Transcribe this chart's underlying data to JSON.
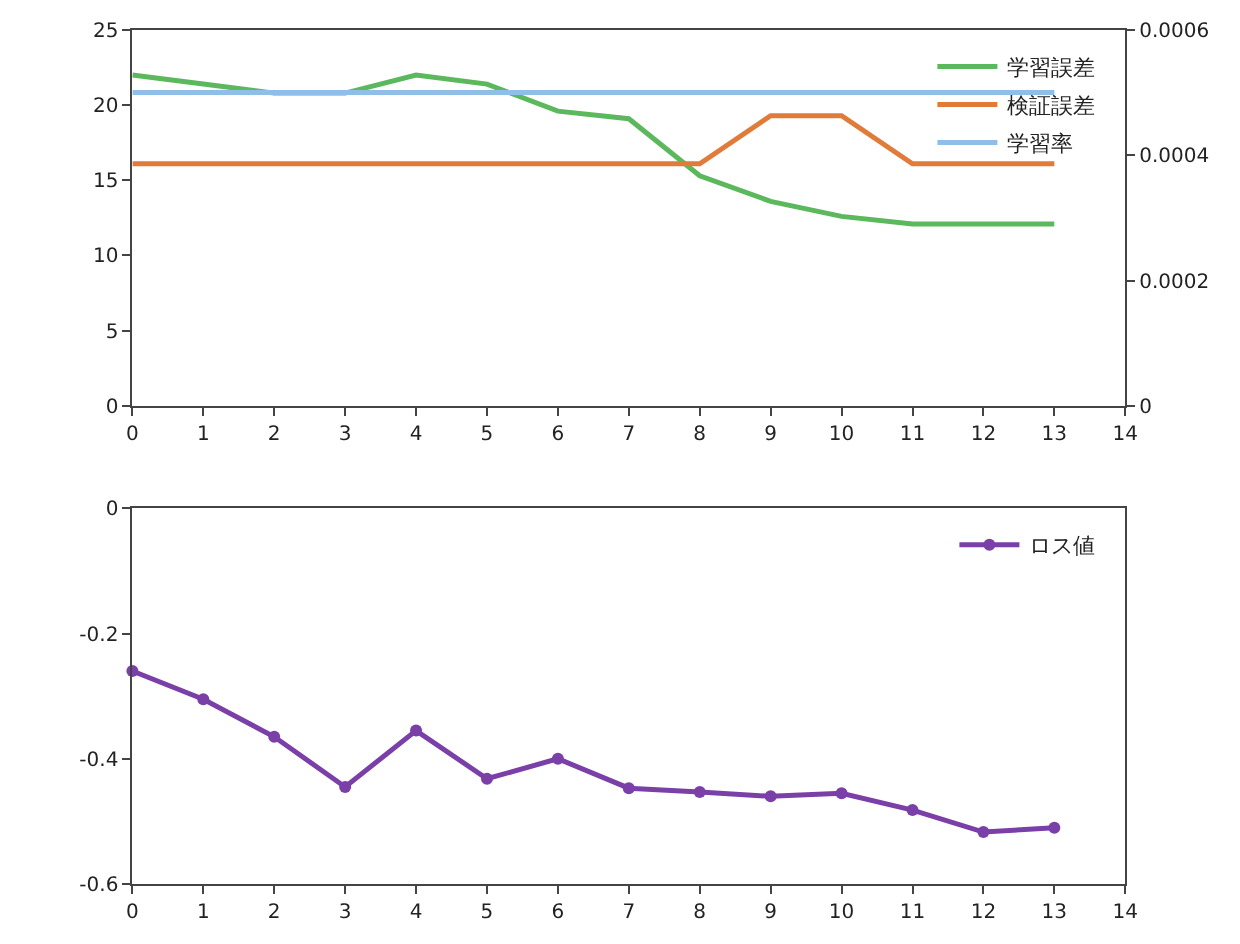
{
  "chart_data": [
    {
      "type": "line",
      "x": [
        0,
        1,
        2,
        3,
        4,
        5,
        6,
        7,
        8,
        9,
        10,
        11,
        12,
        13
      ],
      "xlim": [
        0,
        14
      ],
      "xticks": [
        0,
        1,
        2,
        3,
        4,
        5,
        6,
        7,
        8,
        9,
        10,
        11,
        12,
        13,
        14
      ],
      "ylim": [
        0,
        25
      ],
      "yticks": [
        0,
        5,
        10,
        15,
        20,
        25
      ],
      "y2lim": [
        0,
        0.0006
      ],
      "y2ticks": [
        0,
        0.0002,
        0.0004,
        0.0006
      ],
      "grid": false,
      "legend": "top right",
      "marker": "none",
      "series": [
        {
          "name": "学習誤差",
          "color": "#5cb85c",
          "values": [
            22,
            21.4,
            20.8,
            20.8,
            22,
            21.4,
            19.6,
            19.1,
            15.3,
            13.6,
            12.6,
            12.1,
            12.1,
            12.1
          ]
        },
        {
          "name": "検証誤差",
          "color": "#e07b39",
          "values": [
            16.1,
            16.1,
            16.1,
            16.1,
            16.1,
            16.1,
            16.1,
            16.1,
            16.1,
            19.3,
            19.3,
            16.1,
            16.1,
            16.1
          ]
        },
        {
          "name": "学習率",
          "color": "#8fbfe8",
          "axis": "y2",
          "values": [
            0.0005,
            0.0005,
            0.0005,
            0.0005,
            0.0005,
            0.0005,
            0.0005,
            0.0005,
            0.0005,
            0.0005,
            0.0005,
            0.0005,
            0.0005,
            0.0005
          ]
        }
      ]
    },
    {
      "type": "line",
      "x": [
        0,
        1,
        2,
        3,
        4,
        5,
        6,
        7,
        8,
        9,
        10,
        11,
        12,
        13
      ],
      "xlim": [
        0,
        14
      ],
      "xticks": [
        0,
        1,
        2,
        3,
        4,
        5,
        6,
        7,
        8,
        9,
        10,
        11,
        12,
        13,
        14
      ],
      "ylim": [
        -0.6,
        0
      ],
      "yticks": [
        -0.6,
        -0.4,
        -0.2,
        0
      ],
      "grid": false,
      "legend": "top right",
      "marker": "circle",
      "series": [
        {
          "name": "ロス値",
          "color": "#7b3fa8",
          "values": [
            -0.26,
            -0.305,
            -0.365,
            -0.445,
            -0.355,
            -0.432,
            -0.4,
            -0.447,
            -0.453,
            -0.46,
            -0.455,
            -0.482,
            -0.517,
            -0.51
          ]
        }
      ]
    }
  ]
}
